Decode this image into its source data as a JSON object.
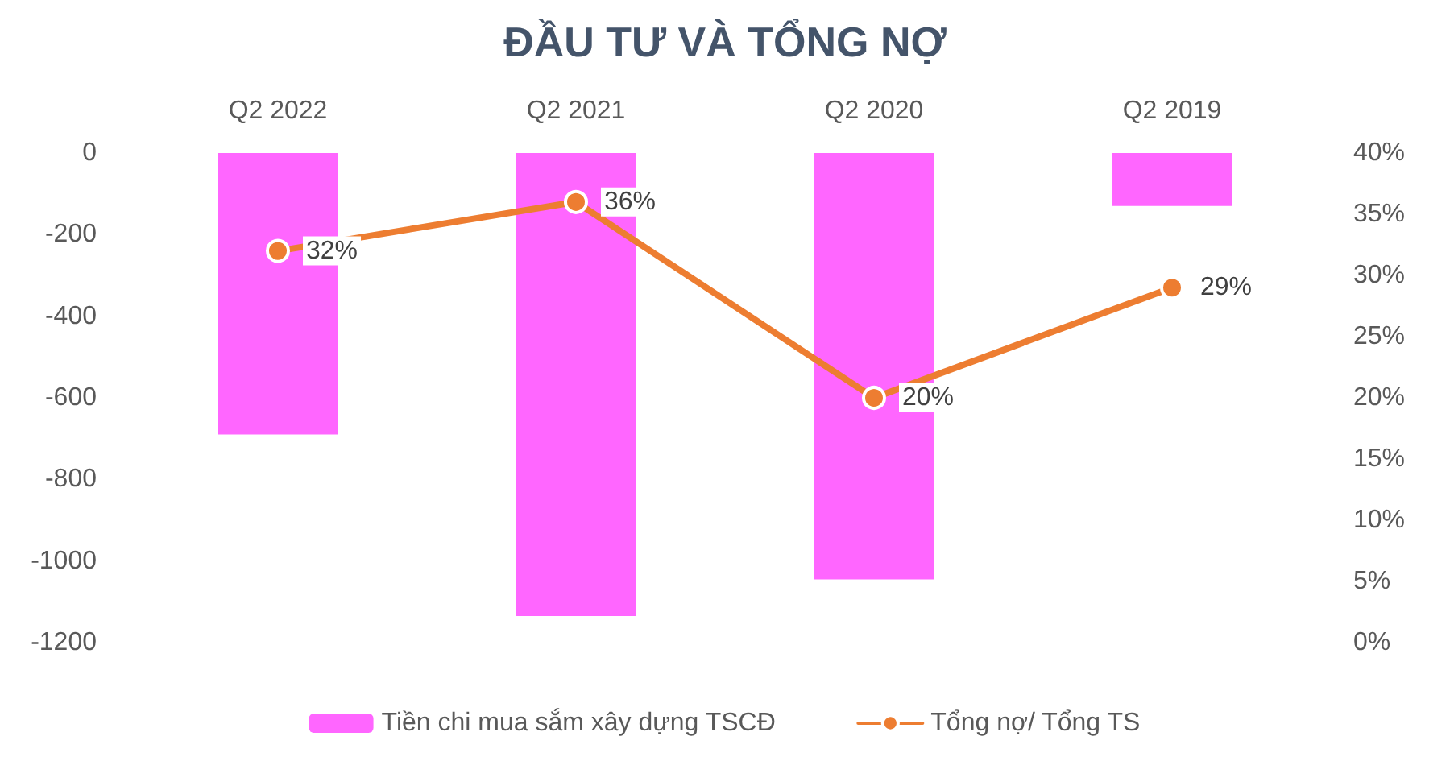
{
  "chart_data": {
    "type": "bar",
    "title": "ĐẦU TƯ VÀ TỔNG NỢ",
    "categories": [
      "Q2 2022",
      "Q2 2021",
      "Q2 2020",
      "Q2 2019"
    ],
    "series": [
      {
        "name": "Tiền chi mua sắm xây dựng TSCĐ",
        "color": "#ff66ff",
        "values": [
          -690,
          -1135,
          -1045,
          -130
        ]
      },
      {
        "name": "Tổng nợ/ Tổng TS",
        "type": "line",
        "axis": "y2",
        "color": "#ed7d31",
        "values": [
          32,
          36,
          20,
          29
        ],
        "value_labels": [
          "32%",
          "36%",
          "20%",
          "29%"
        ]
      }
    ],
    "ylim": [
      -1200,
      0
    ],
    "yticks": [
      -1200,
      -1000,
      -800,
      -600,
      -400,
      -200,
      0
    ],
    "y2lim": [
      0,
      40
    ],
    "y2ticks": [
      {
        "value": 0,
        "label": "0%"
      },
      {
        "value": 5,
        "label": "5%"
      },
      {
        "value": 10,
        "label": "10%"
      },
      {
        "value": 15,
        "label": "15%"
      },
      {
        "value": 20,
        "label": "20%"
      },
      {
        "value": 25,
        "label": "25%"
      },
      {
        "value": 30,
        "label": "30%"
      },
      {
        "value": 35,
        "label": "35%"
      },
      {
        "value": 40,
        "label": "40%"
      }
    ],
    "grid": false,
    "legend": "bottom",
    "marker": "circle"
  }
}
